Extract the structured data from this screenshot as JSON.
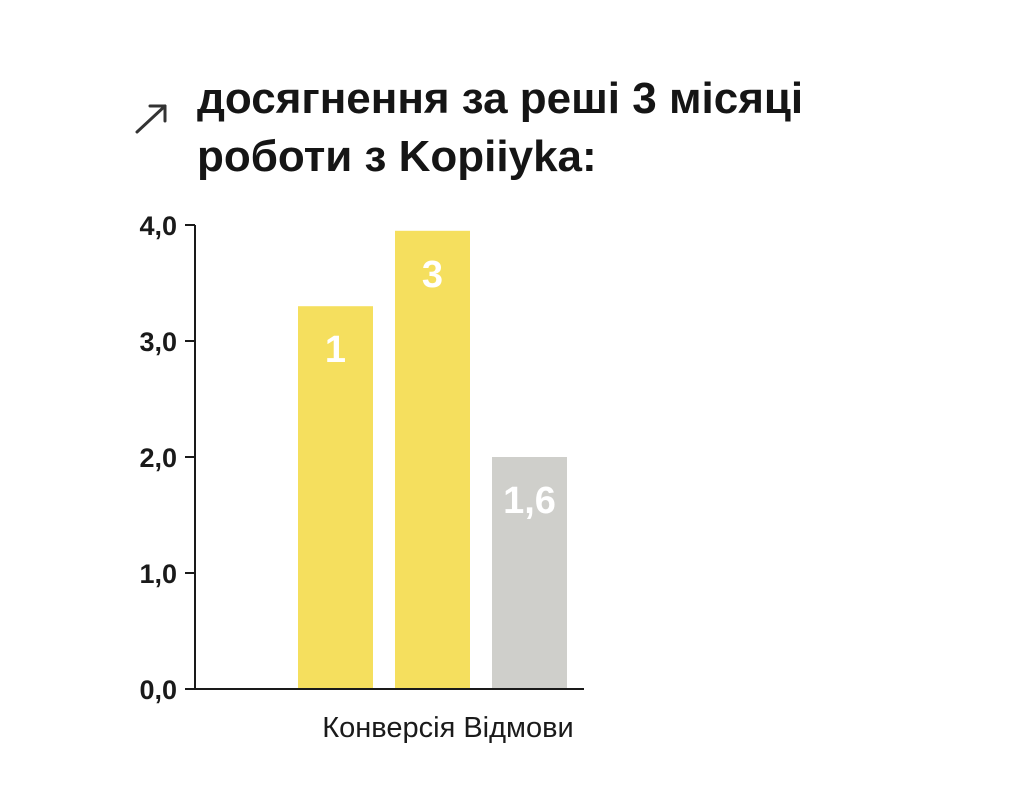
{
  "title": {
    "line1": "досягнення за решi 3 місяці",
    "line2": "роботи з Kopiiyka:"
  },
  "icons": {
    "title_arrow": "arrow-up-right-icon"
  },
  "colors": {
    "yellow": "#F5DF5E",
    "gray": "#CFCFCB",
    "axis": "#1a1a1a",
    "text": "#151515"
  },
  "chart_data": {
    "type": "bar",
    "title": "досягнення за решi 3 місяці роботи з Kopiiyka:",
    "xlabel": "Конверсія Відмови",
    "ylabel": "",
    "ylim": [
      0,
      4
    ],
    "yticks": [
      "0,0",
      "1,0",
      "2,0",
      "3,0",
      "4,0"
    ],
    "ytick_values": [
      0,
      1,
      2,
      3,
      4
    ],
    "grid": false,
    "bars": [
      {
        "label": "1",
        "value": 3.3,
        "color": "#F5DF5E"
      },
      {
        "label": "3",
        "value": 3.95,
        "color": "#F5DF5E"
      },
      {
        "label": "1,6",
        "value": 2.0,
        "color": "#CFCFCB"
      }
    ]
  }
}
